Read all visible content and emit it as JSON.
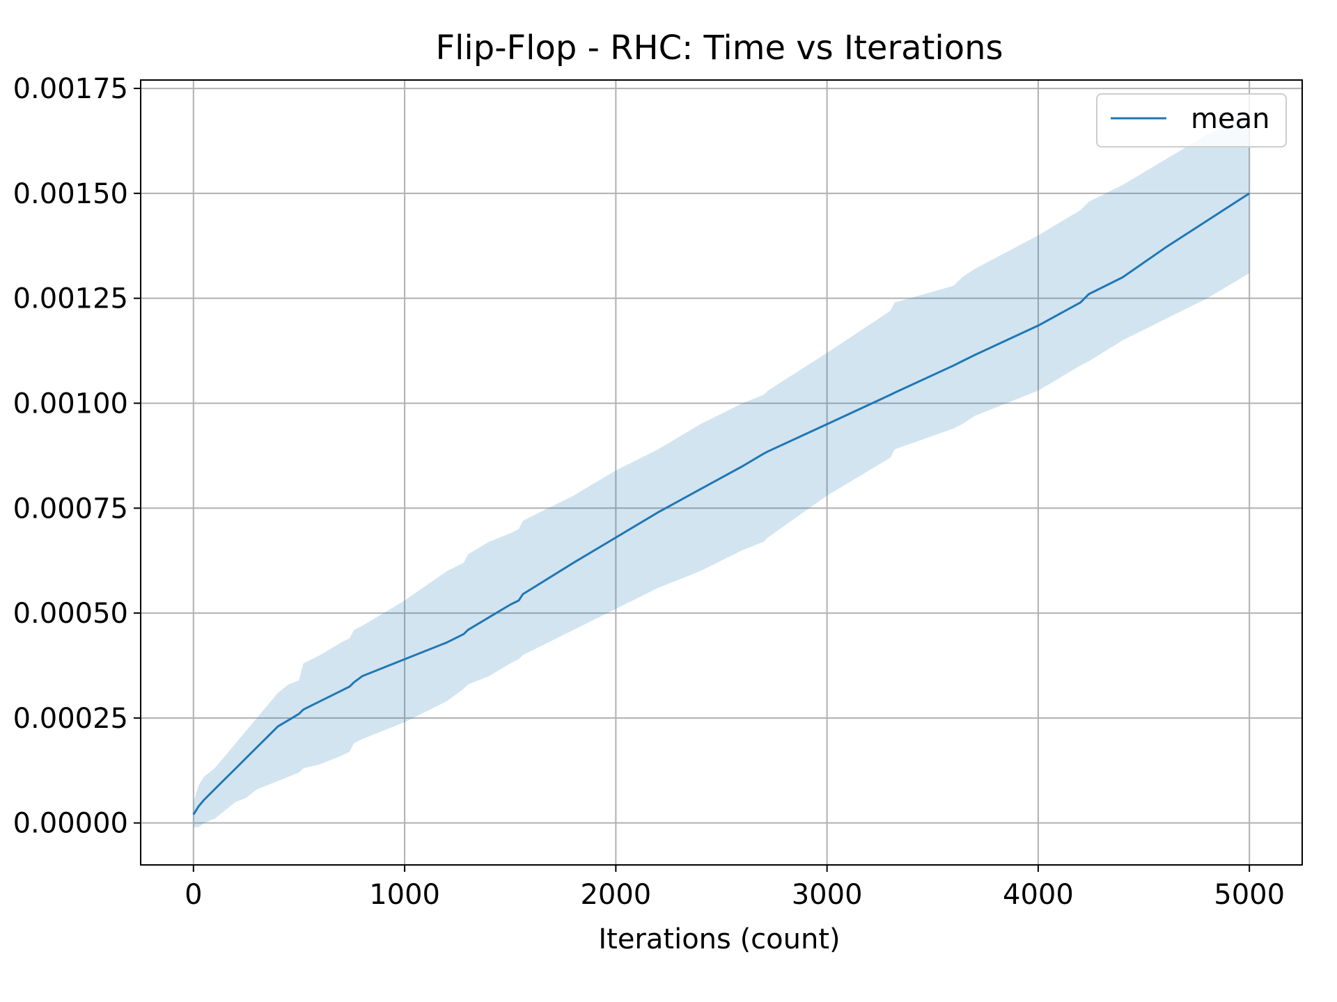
{
  "chart_data": {
    "type": "line",
    "title": "Flip-Flop - RHC: Time vs Iterations",
    "xlabel": "Iterations (count)",
    "ylabel": "",
    "xlim": [
      -250,
      5250
    ],
    "ylim": [
      -0.0001,
      0.00177
    ],
    "xticks": [
      0,
      1000,
      2000,
      3000,
      4000,
      5000
    ],
    "xtick_labels": [
      "0",
      "1000",
      "2000",
      "3000",
      "4000",
      "5000"
    ],
    "yticks": [
      0,
      0.00025,
      0.0005,
      0.00075,
      0.001,
      0.00125,
      0.0015,
      0.00175
    ],
    "ytick_labels": [
      "0.00000",
      "0.00025",
      "0.00050",
      "0.00075",
      "0.00100",
      "0.00125",
      "0.00150",
      "0.00175"
    ],
    "grid": true,
    "legend": {
      "position": "top-right",
      "entries": [
        "mean"
      ]
    },
    "colors": {
      "line": "#1f77b4",
      "band": "#1f77b4",
      "grid": "#b0b0b0"
    },
    "series": [
      {
        "name": "mean",
        "x": [
          0,
          25,
          50,
          100,
          150,
          200,
          250,
          300,
          350,
          400,
          450,
          500,
          520,
          600,
          700,
          740,
          760,
          800,
          1000,
          1200,
          1280,
          1300,
          1400,
          1500,
          1540,
          1560,
          1800,
          2000,
          2200,
          2400,
          2600,
          2700,
          2720,
          3000,
          3300,
          3320,
          3600,
          3640,
          3700,
          4000,
          4200,
          4240,
          4400,
          4600,
          4800,
          5000
        ],
        "y": [
          2e-05,
          4e-05,
          5.5e-05,
          8e-05,
          0.000105,
          0.00013,
          0.000155,
          0.00018,
          0.000205,
          0.00023,
          0.000245,
          0.00026,
          0.00027,
          0.00029,
          0.000315,
          0.000325,
          0.000335,
          0.00035,
          0.00039,
          0.00043,
          0.00045,
          0.00046,
          0.00049,
          0.00052,
          0.00053,
          0.000545,
          0.00062,
          0.00068,
          0.00074,
          0.000795,
          0.00085,
          0.00088,
          0.000885,
          0.00095,
          0.00102,
          0.001025,
          0.00109,
          0.0011,
          0.001115,
          0.001185,
          0.00124,
          0.00126,
          0.0013,
          0.00137,
          0.001435,
          0.0015
        ],
        "upper": [
          5e-05,
          9e-05,
          0.00011,
          0.00013,
          0.00016,
          0.00019,
          0.00022,
          0.00025,
          0.00028,
          0.00031,
          0.00033,
          0.00034,
          0.00038,
          0.0004,
          0.00043,
          0.00044,
          0.00046,
          0.00047,
          0.00053,
          0.0006,
          0.00062,
          0.00064,
          0.00067,
          0.00069,
          0.0007,
          0.00072,
          0.00078,
          0.00084,
          0.00089,
          0.00095,
          0.001,
          0.00102,
          0.00103,
          0.00112,
          0.00122,
          0.00124,
          0.00128,
          0.0013,
          0.00132,
          0.0014,
          0.00146,
          0.00148,
          0.00152,
          0.00158,
          0.00164,
          0.00168
        ],
        "lower": [
          -1e-05,
          -1e-05,
          0.0,
          1e-05,
          3e-05,
          5e-05,
          6e-05,
          8e-05,
          9e-05,
          0.0001,
          0.00011,
          0.00012,
          0.00013,
          0.00014,
          0.00016,
          0.00017,
          0.00019,
          0.0002,
          0.00024,
          0.00029,
          0.00032,
          0.00033,
          0.00035,
          0.00038,
          0.00039,
          0.0004,
          0.00046,
          0.00051,
          0.00056,
          0.0006,
          0.00065,
          0.00067,
          0.00068,
          0.00078,
          0.00087,
          0.00089,
          0.00094,
          0.00095,
          0.00097,
          0.00103,
          0.00109,
          0.0011,
          0.00115,
          0.0012,
          0.00125,
          0.00131
        ]
      }
    ]
  }
}
